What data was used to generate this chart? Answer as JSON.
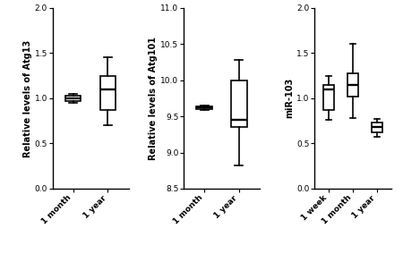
{
  "subplot1": {
    "ylabel": "Relative levels of Atg13",
    "ylim": [
      0.0,
      2.0
    ],
    "yticks": [
      0.0,
      0.5,
      1.0,
      1.5,
      2.0
    ],
    "categories": [
      "1 month",
      "1 year"
    ],
    "boxes": [
      {
        "q1": 0.97,
        "median": 1.0,
        "q3": 1.03,
        "whislo": 0.95,
        "whishi": 1.05
      },
      {
        "q1": 0.87,
        "median": 1.1,
        "q3": 1.25,
        "whislo": 0.7,
        "whishi": 1.45
      }
    ]
  },
  "subplot2": {
    "ylabel": "Relative levels of Atg101",
    "ylim": [
      8.5,
      11.0
    ],
    "yticks": [
      8.5,
      9.0,
      9.5,
      10.0,
      10.5,
      11.0
    ],
    "categories": [
      "1 month",
      "1 year"
    ],
    "boxes": [
      {
        "q1": 9.6,
        "median": 9.62,
        "q3": 9.64,
        "whislo": 9.59,
        "whishi": 9.65
      },
      {
        "q1": 9.35,
        "median": 9.45,
        "q3": 10.0,
        "whislo": 8.82,
        "whishi": 10.28
      }
    ]
  },
  "subplot3": {
    "ylabel": "miR-103",
    "ylim": [
      0.0,
      2.0
    ],
    "yticks": [
      0.0,
      0.5,
      1.0,
      1.5,
      2.0
    ],
    "categories": [
      "1 week",
      "1 month",
      "1 year"
    ],
    "boxes": [
      {
        "q1": 0.87,
        "median": 1.1,
        "q3": 1.15,
        "whislo": 0.76,
        "whishi": 1.25
      },
      {
        "q1": 1.02,
        "median": 1.15,
        "q3": 1.28,
        "whislo": 0.78,
        "whishi": 1.6
      },
      {
        "q1": 0.62,
        "median": 0.68,
        "q3": 0.73,
        "whislo": 0.57,
        "whishi": 0.77
      }
    ]
  },
  "box_width": 0.45,
  "linewidth": 1.2,
  "background_color": "#ffffff",
  "box_color": "#ffffff",
  "median_color": "#000000",
  "whisker_color": "#000000",
  "cap_color": "#000000",
  "box_edge_color": "#000000",
  "tick_fontsize": 6.5,
  "ylabel_fontsize": 7.0
}
